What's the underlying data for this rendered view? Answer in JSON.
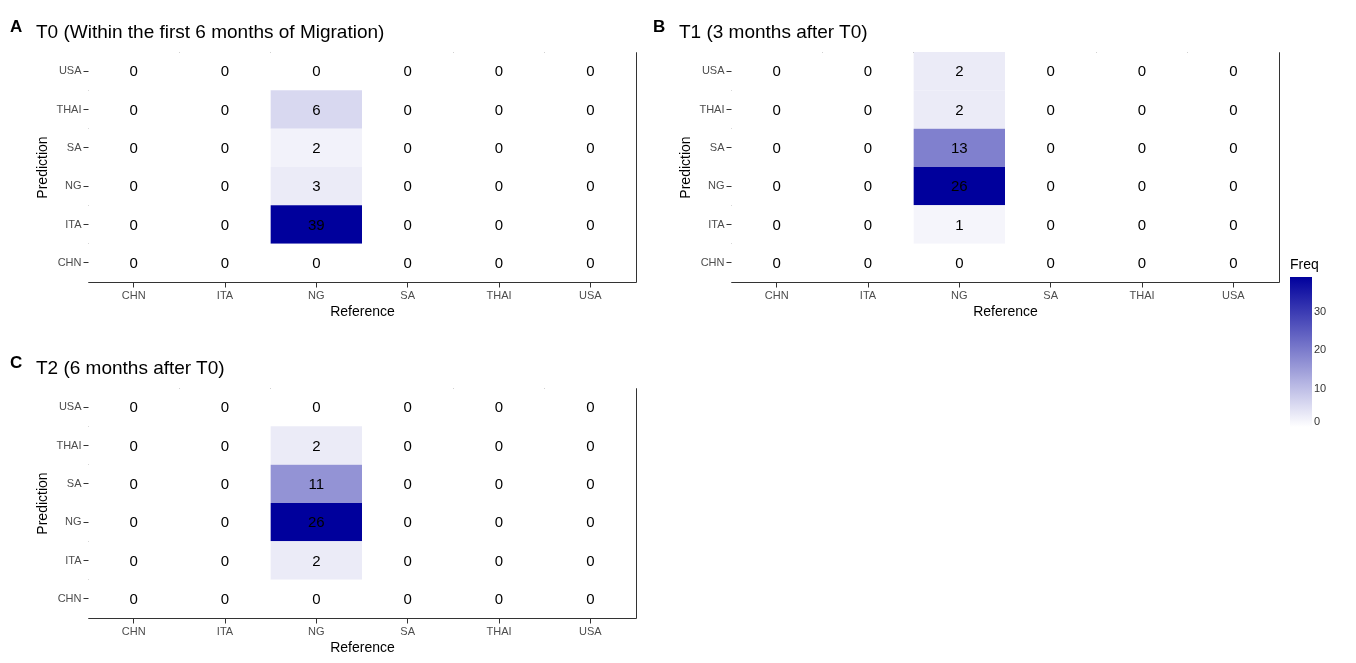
{
  "chart_data": [
    {
      "type": "heatmap",
      "title": "T0 (Within the first 6 months of Migration)",
      "annotations": [
        "A"
      ],
      "xlabel": "Reference",
      "ylabel": "Prediction",
      "categories": [
        "CHN",
        "ITA",
        "NG",
        "SA",
        "THAI",
        "USA"
      ],
      "y_categories": [
        "USA",
        "THAI",
        "SA",
        "NG",
        "ITA",
        "CHN"
      ],
      "cells": [
        [
          0,
          0,
          0,
          0,
          0,
          0
        ],
        [
          0,
          0,
          6,
          0,
          0,
          0
        ],
        [
          0,
          0,
          2,
          0,
          0,
          0
        ],
        [
          0,
          0,
          3,
          0,
          0,
          0
        ],
        [
          0,
          0,
          39,
          0,
          0,
          0
        ],
        [
          0,
          0,
          0,
          0,
          0,
          0
        ]
      ],
      "clim": [
        0,
        39
      ],
      "cticks": [
        0,
        10,
        20,
        30
      ],
      "clabel": "Freq",
      "data_labels": true
    },
    {
      "type": "heatmap",
      "title": "T1 (3 months after T0)",
      "annotations": [
        "B"
      ],
      "xlabel": "Reference",
      "ylabel": "Prediction",
      "categories": [
        "CHN",
        "ITA",
        "NG",
        "SA",
        "THAI",
        "USA"
      ],
      "y_categories": [
        "USA",
        "THAI",
        "SA",
        "NG",
        "ITA",
        "CHN"
      ],
      "cells": [
        [
          0,
          0,
          2,
          0,
          0,
          0
        ],
        [
          0,
          0,
          2,
          0,
          0,
          0
        ],
        [
          0,
          0,
          13,
          0,
          0,
          0
        ],
        [
          0,
          0,
          26,
          0,
          0,
          0
        ],
        [
          0,
          0,
          1,
          0,
          0,
          0
        ],
        [
          0,
          0,
          0,
          0,
          0,
          0
        ]
      ],
      "data_labels": true
    },
    {
      "type": "heatmap",
      "title": "T2 (6 months after T0)",
      "annotations": [
        "C"
      ],
      "xlabel": "Reference",
      "ylabel": "Prediction",
      "categories": [
        "CHN",
        "ITA",
        "NG",
        "SA",
        "THAI",
        "USA"
      ],
      "y_categories": [
        "USA",
        "THAI",
        "SA",
        "NG",
        "ITA",
        "CHN"
      ],
      "cells": [
        [
          0,
          0,
          0,
          0,
          0,
          0
        ],
        [
          0,
          0,
          2,
          0,
          0,
          0
        ],
        [
          0,
          0,
          11,
          0,
          0,
          0
        ],
        [
          0,
          0,
          26,
          0,
          0,
          0
        ],
        [
          0,
          0,
          2,
          0,
          0,
          0
        ],
        [
          0,
          0,
          0,
          0,
          0,
          0
        ]
      ],
      "data_labels": true
    }
  ]
}
